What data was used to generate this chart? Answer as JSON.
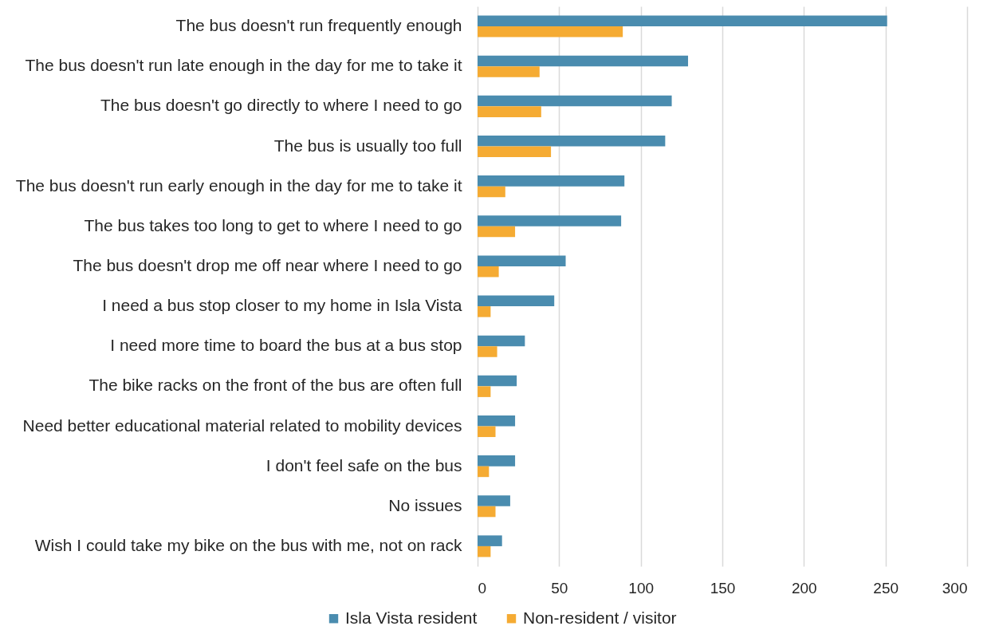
{
  "chart_data": {
    "type": "bar",
    "orientation": "horizontal",
    "categories": [
      "The bus doesn't run frequently enough",
      "The bus doesn't run late enough in the day for me to take it",
      "The bus doesn't go directly to where I need to go",
      "The bus is usually too full",
      "The bus doesn't run early enough in the day for me to take it",
      "The bus takes too long to get to where I need to go",
      "The bus doesn't drop me off near where I need to go",
      "I need a bus stop closer to my home in Isla Vista",
      "I need more time to board the bus at a bus stop",
      "The bike racks on the front of the bus are often full",
      "Need better educational material related to mobility devices",
      "I don't feel safe on the bus",
      "No issues",
      "Wish I could take my bike on the bus with me, not on rack"
    ],
    "series": [
      {
        "name": "Isla Vista resident",
        "color": "#4a8caf",
        "values": [
          251,
          129,
          119,
          115,
          90,
          88,
          54,
          47,
          29,
          24,
          23,
          23,
          20,
          15
        ]
      },
      {
        "name": "Non-resident / visitor",
        "color": "#f5ab33",
        "values": [
          89,
          38,
          39,
          45,
          17,
          23,
          13,
          8,
          12,
          8,
          11,
          7,
          11,
          8
        ]
      }
    ],
    "xlim": [
      0,
      300
    ],
    "xticks": [
      0,
      50,
      100,
      150,
      200,
      250,
      300
    ],
    "grid": "x",
    "legend": "bottom"
  }
}
